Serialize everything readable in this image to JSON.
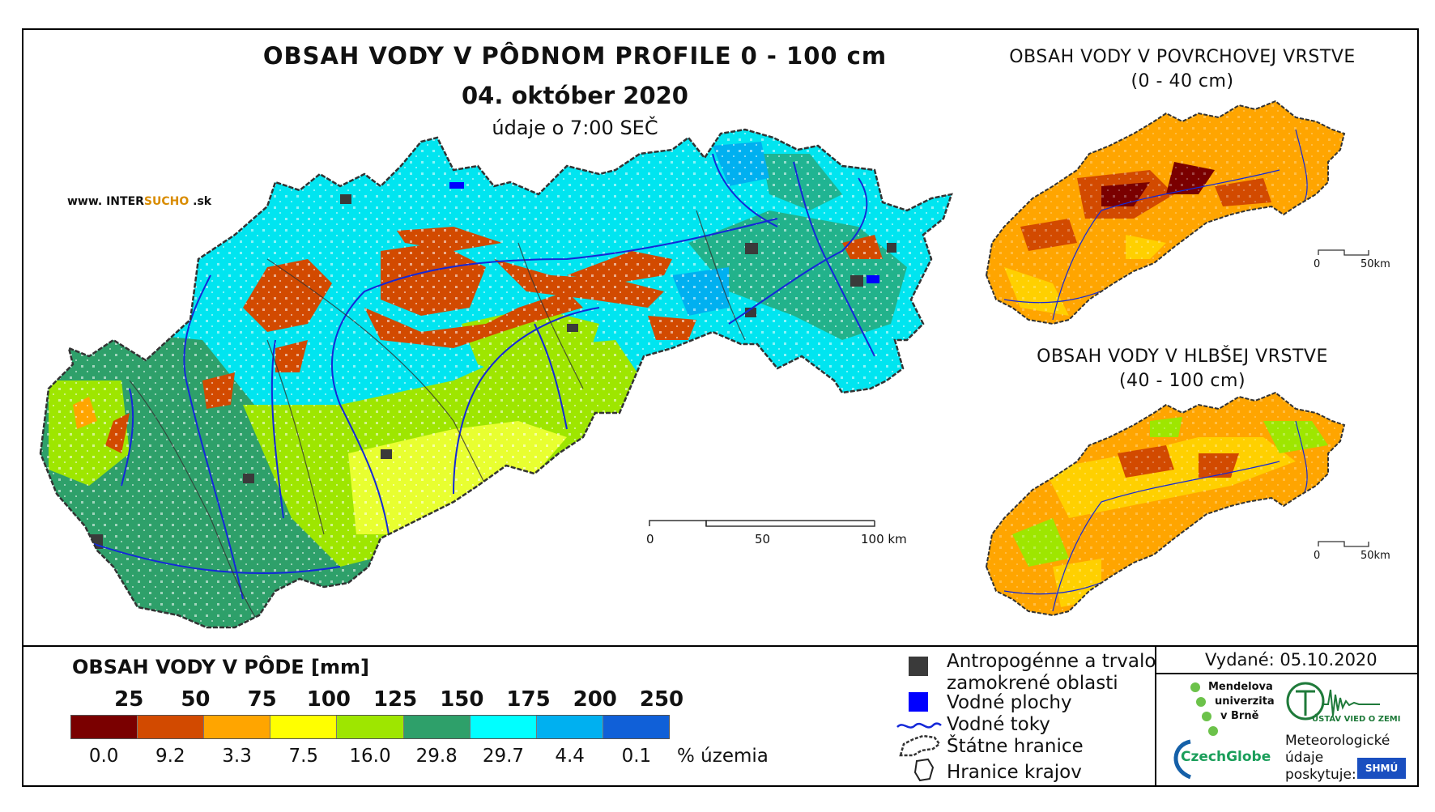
{
  "main": {
    "title": "OBSAH VODY V PÔDNOM PROFILE 0 - 100 cm",
    "date": "04. október 2020",
    "time": "údaje o 7:00 SEČ",
    "website_prefix": "www. INTER",
    "website_accent": "SUCHO",
    "website_suffix": " .sk",
    "scale_labels": [
      "0",
      "50",
      "100 km"
    ]
  },
  "inset_top": {
    "title_line1": "OBSAH VODY V POVRCHOVEJ VRSTVE",
    "title_line2": "(0 - 40 cm)",
    "scale_labels": [
      "0",
      "50km"
    ]
  },
  "inset_bottom": {
    "title_line1": "OBSAH VODY V HLBŠEJ VRSTVE",
    "title_line2": "(40 - 100 cm)",
    "scale_labels": [
      "0",
      "50km"
    ]
  },
  "legend": {
    "title": "OBSAH VODY V PÔDE [mm]",
    "thresholds": [
      "25",
      "50",
      "75",
      "100",
      "125",
      "150",
      "175",
      "200",
      "250"
    ],
    "classes": [
      {
        "color": "#7a0000",
        "percent": "0.0"
      },
      {
        "color": "#d24a00",
        "percent": "9.2"
      },
      {
        "color": "#ffa500",
        "percent": "3.3"
      },
      {
        "color": "#ffff00",
        "percent": "7.5"
      },
      {
        "color": "#9ee600",
        "percent": "16.0"
      },
      {
        "color": "#2ea06a",
        "percent": "29.8"
      },
      {
        "color": "#00ffff",
        "percent": "29.7"
      },
      {
        "color": "#00b0f0",
        "percent": "4.4"
      },
      {
        "color": "#1060d8",
        "percent": "0.1"
      }
    ],
    "unit": "% územia"
  },
  "symbols": {
    "urban_line1": "Antropogénne a trvalo",
    "urban_line2": "zamokrené oblasti",
    "water_bodies": "Vodné plochy",
    "rivers": "Vodné toky",
    "border": "Štátne hranice",
    "regions": "Hranice krajov"
  },
  "credits": {
    "issued": "Vydané: 05.10.2020",
    "mendel": [
      "Mendelova",
      "univerzita",
      "v Brně"
    ],
    "ustav": "ÚSTAV VIED O ZEMI",
    "czechglobe": "CzechGlobe",
    "provided": [
      "Meteorologické",
      "údaje",
      "poskytuje:"
    ],
    "shmu": "SHMÚ"
  },
  "colors": {
    "water": "#0000ff",
    "urban": "#3a3a3a",
    "river": "#1428d8"
  }
}
